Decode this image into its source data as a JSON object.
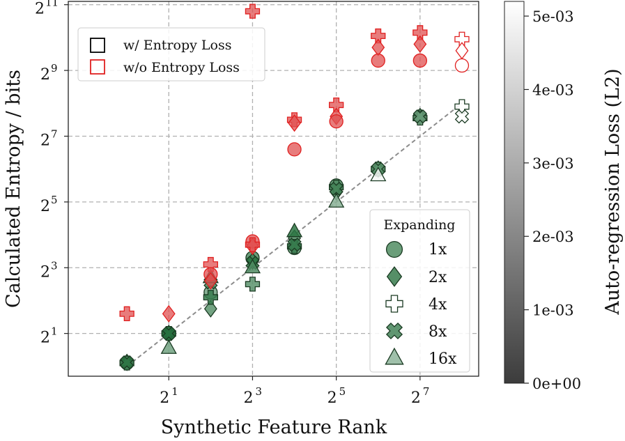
{
  "chart_data": {
    "type": "scatter",
    "xlabel": "Synthetic Feature Rank",
    "ylabel": "Calculated Entropy / bits",
    "x_scale": "log2",
    "y_scale": "log2",
    "xlim_exp": [
      -1.4,
      8.4
    ],
    "ylim_exp": [
      -0.3,
      11.1
    ],
    "x_ticks": [
      {
        "base": "2",
        "exp": "1",
        "value_exp": 1
      },
      {
        "base": "2",
        "exp": "3",
        "value_exp": 3
      },
      {
        "base": "2",
        "exp": "5",
        "value_exp": 5
      },
      {
        "base": "2",
        "exp": "7",
        "value_exp": 7
      }
    ],
    "y_ticks": [
      {
        "base": "2",
        "exp": "1",
        "value_exp": 1
      },
      {
        "base": "2",
        "exp": "3",
        "value_exp": 3
      },
      {
        "base": "2",
        "exp": "5",
        "value_exp": 5
      },
      {
        "base": "2",
        "exp": "7",
        "value_exp": 7
      },
      {
        "base": "2",
        "exp": "9",
        "value_exp": 9
      },
      {
        "base": "2",
        "exp": "11",
        "value_exp": 11
      }
    ],
    "diagonal_exp": [
      [
        0,
        0
      ],
      [
        8,
        8
      ]
    ],
    "colors": {
      "with_loss": "#2e8b4e",
      "without_loss": "#e05050",
      "diagonal": "#8c8c8c",
      "grid": "#b0b0b0"
    },
    "points": [
      {
        "group": "with_loss",
        "marker": "circle",
        "x_exp": 0,
        "y_exp": 0.1,
        "shade": 0.1
      },
      {
        "group": "with_loss",
        "marker": "diamond",
        "x_exp": 0,
        "y_exp": 0.12,
        "shade": 0.15
      },
      {
        "group": "with_loss",
        "marker": "cross",
        "x_exp": 0,
        "y_exp": 0.1,
        "shade": 0.2
      },
      {
        "group": "with_loss",
        "marker": "x",
        "x_exp": 0,
        "y_exp": 0.12,
        "shade": 0.1
      },
      {
        "group": "with_loss",
        "marker": "circle",
        "x_exp": 1,
        "y_exp": 1.0,
        "shade": 0.1
      },
      {
        "group": "with_loss",
        "marker": "diamond",
        "x_exp": 1,
        "y_exp": 1.0,
        "shade": 0.12
      },
      {
        "group": "with_loss",
        "marker": "cross",
        "x_exp": 1,
        "y_exp": 1.0,
        "shade": 0.1
      },
      {
        "group": "with_loss",
        "marker": "x",
        "x_exp": 1,
        "y_exp": 1.0,
        "shade": 0.08
      },
      {
        "group": "with_loss",
        "marker": "triangle",
        "x_exp": 1,
        "y_exp": 0.55,
        "shade": 0.4
      },
      {
        "group": "with_loss",
        "marker": "circle",
        "x_exp": 2,
        "y_exp": 2.25,
        "shade": 0.4
      },
      {
        "group": "with_loss",
        "marker": "diamond",
        "x_exp": 2,
        "y_exp": 1.75,
        "shade": 0.3
      },
      {
        "group": "with_loss",
        "marker": "cross",
        "x_exp": 2,
        "y_exp": 2.1,
        "shade": 0.15
      },
      {
        "group": "with_loss",
        "marker": "x",
        "x_exp": 2,
        "y_exp": 2.55,
        "shade": 0.2
      },
      {
        "group": "with_loss",
        "marker": "triangle",
        "x_exp": 2,
        "y_exp": 2.7,
        "shade": 0.2
      },
      {
        "group": "with_loss",
        "marker": "circle",
        "x_exp": 3,
        "y_exp": 3.3,
        "shade": 0.25
      },
      {
        "group": "with_loss",
        "marker": "diamond",
        "x_exp": 3,
        "y_exp": 3.2,
        "shade": 0.2
      },
      {
        "group": "with_loss",
        "marker": "cross",
        "x_exp": 3,
        "y_exp": 2.5,
        "shade": 0.3
      },
      {
        "group": "with_loss",
        "marker": "x",
        "x_exp": 3,
        "y_exp": 3.15,
        "shade": 0.1
      },
      {
        "group": "with_loss",
        "marker": "triangle",
        "x_exp": 3,
        "y_exp": 3.0,
        "shade": 0.25
      },
      {
        "group": "with_loss",
        "marker": "circle",
        "x_exp": 4,
        "y_exp": 3.6,
        "shade": 0.3
      },
      {
        "group": "with_loss",
        "marker": "diamond",
        "x_exp": 4,
        "y_exp": 3.9,
        "shade": 0.25
      },
      {
        "group": "with_loss",
        "marker": "cross",
        "x_exp": 4,
        "y_exp": 3.65,
        "shade": 0.15
      },
      {
        "group": "with_loss",
        "marker": "x",
        "x_exp": 4,
        "y_exp": 3.7,
        "shade": 0.15
      },
      {
        "group": "with_loss",
        "marker": "triangle",
        "x_exp": 4,
        "y_exp": 4.1,
        "shade": 0.1
      },
      {
        "group": "with_loss",
        "marker": "circle",
        "x_exp": 5,
        "y_exp": 5.5,
        "shade": 0.25
      },
      {
        "group": "with_loss",
        "marker": "diamond",
        "x_exp": 5,
        "y_exp": 5.3,
        "shade": 0.25
      },
      {
        "group": "with_loss",
        "marker": "cross",
        "x_exp": 5,
        "y_exp": 5.45,
        "shade": 0.25
      },
      {
        "group": "with_loss",
        "marker": "x",
        "x_exp": 5,
        "y_exp": 5.4,
        "shade": 0.2
      },
      {
        "group": "with_loss",
        "marker": "triangle",
        "x_exp": 5,
        "y_exp": 5.0,
        "shade": 0.5
      },
      {
        "group": "with_loss",
        "marker": "circle",
        "x_exp": 6,
        "y_exp": 6.0,
        "shade": 0.3
      },
      {
        "group": "with_loss",
        "marker": "diamond",
        "x_exp": 6,
        "y_exp": 6.0,
        "shade": 0.3
      },
      {
        "group": "with_loss",
        "marker": "cross",
        "x_exp": 6,
        "y_exp": 6.0,
        "shade": 0.3
      },
      {
        "group": "with_loss",
        "marker": "x",
        "x_exp": 6,
        "y_exp": 6.0,
        "shade": 0.3
      },
      {
        "group": "with_loss",
        "marker": "triangle",
        "x_exp": 6,
        "y_exp": 5.8,
        "shade": 0.95
      },
      {
        "group": "with_loss",
        "marker": "circle",
        "x_exp": 7,
        "y_exp": 7.6,
        "shade": 0.35
      },
      {
        "group": "with_loss",
        "marker": "diamond",
        "x_exp": 7,
        "y_exp": 7.6,
        "shade": 0.35
      },
      {
        "group": "with_loss",
        "marker": "cross",
        "x_exp": 7,
        "y_exp": 7.55,
        "shade": 0.35
      },
      {
        "group": "with_loss",
        "marker": "x",
        "x_exp": 7,
        "y_exp": 7.6,
        "shade": 0.35
      },
      {
        "group": "with_loss",
        "marker": "cross",
        "x_exp": 8,
        "y_exp": 7.9,
        "shade": 1.0
      },
      {
        "group": "with_loss",
        "marker": "x",
        "x_exp": 8,
        "y_exp": 7.6,
        "shade": 1.0
      },
      {
        "group": "without_loss",
        "marker": "cross",
        "x_exp": 0,
        "y_exp": 1.6
      },
      {
        "group": "without_loss",
        "marker": "diamond",
        "x_exp": 1,
        "y_exp": 1.6
      },
      {
        "group": "without_loss",
        "marker": "cross",
        "x_exp": 2,
        "y_exp": 3.1
      },
      {
        "group": "without_loss",
        "marker": "circle",
        "x_exp": 2,
        "y_exp": 2.8
      },
      {
        "group": "without_loss",
        "marker": "diamond",
        "x_exp": 2,
        "y_exp": 2.6
      },
      {
        "group": "without_loss",
        "marker": "circle",
        "x_exp": 3,
        "y_exp": 3.8
      },
      {
        "group": "without_loss",
        "marker": "diamond",
        "x_exp": 3,
        "y_exp": 3.65
      },
      {
        "group": "without_loss",
        "marker": "cross",
        "x_exp": 3,
        "y_exp": 3.7
      },
      {
        "group": "without_loss",
        "marker": "cross",
        "x_exp": 3,
        "y_exp": 10.8
      },
      {
        "group": "without_loss",
        "marker": "cross",
        "x_exp": 4,
        "y_exp": 7.5
      },
      {
        "group": "without_loss",
        "marker": "diamond",
        "x_exp": 4,
        "y_exp": 7.4
      },
      {
        "group": "without_loss",
        "marker": "circle",
        "x_exp": 4,
        "y_exp": 6.6
      },
      {
        "group": "without_loss",
        "marker": "cross",
        "x_exp": 5,
        "y_exp": 7.95
      },
      {
        "group": "without_loss",
        "marker": "diamond",
        "x_exp": 5,
        "y_exp": 7.6
      },
      {
        "group": "without_loss",
        "marker": "circle",
        "x_exp": 5,
        "y_exp": 7.45
      },
      {
        "group": "without_loss",
        "marker": "cross",
        "x_exp": 6,
        "y_exp": 10.05
      },
      {
        "group": "without_loss",
        "marker": "diamond",
        "x_exp": 6,
        "y_exp": 9.7
      },
      {
        "group": "without_loss",
        "marker": "circle",
        "x_exp": 6,
        "y_exp": 9.3
      },
      {
        "group": "without_loss",
        "marker": "cross",
        "x_exp": 7,
        "y_exp": 10.15
      },
      {
        "group": "without_loss",
        "marker": "diamond",
        "x_exp": 7,
        "y_exp": 9.8
      },
      {
        "group": "without_loss",
        "marker": "circle",
        "x_exp": 7,
        "y_exp": 9.3
      },
      {
        "group": "without_loss",
        "marker": "cross",
        "x_exp": 8,
        "y_exp": 9.95,
        "hollow": true
      },
      {
        "group": "without_loss",
        "marker": "diamond",
        "x_exp": 8,
        "y_exp": 9.6,
        "hollow": true
      },
      {
        "group": "without_loss",
        "marker": "circle",
        "x_exp": 8,
        "y_exp": 9.15,
        "hollow": true
      }
    ],
    "legend_loss": [
      {
        "label": "w/ Entropy Loss",
        "color": "#000000"
      },
      {
        "label": "w/o Entropy Loss",
        "color": "#e02020"
      }
    ],
    "legend_expanding": {
      "title": "Expanding",
      "items": [
        {
          "label": "1x",
          "marker": "circle",
          "shade": 0.3
        },
        {
          "label": "2x",
          "marker": "diamond",
          "shade": 0.2
        },
        {
          "label": "4x",
          "marker": "cross",
          "shade": 1.0
        },
        {
          "label": "8x",
          "marker": "x",
          "shade": 0.25
        },
        {
          "label": "16x",
          "marker": "triangle",
          "shade": 0.55
        }
      ]
    },
    "colorbar": {
      "label": "Auto-regression Loss (L2)",
      "min": 0,
      "max": 0.0052,
      "ticks": [
        {
          "value": 0,
          "label": "0e+00"
        },
        {
          "value": 0.001,
          "label": "1e-03"
        },
        {
          "value": 0.002,
          "label": "2e-03"
        },
        {
          "value": 0.003,
          "label": "3e-03"
        },
        {
          "value": 0.004,
          "label": "4e-03"
        },
        {
          "value": 0.005,
          "label": "5e-03"
        }
      ]
    }
  }
}
